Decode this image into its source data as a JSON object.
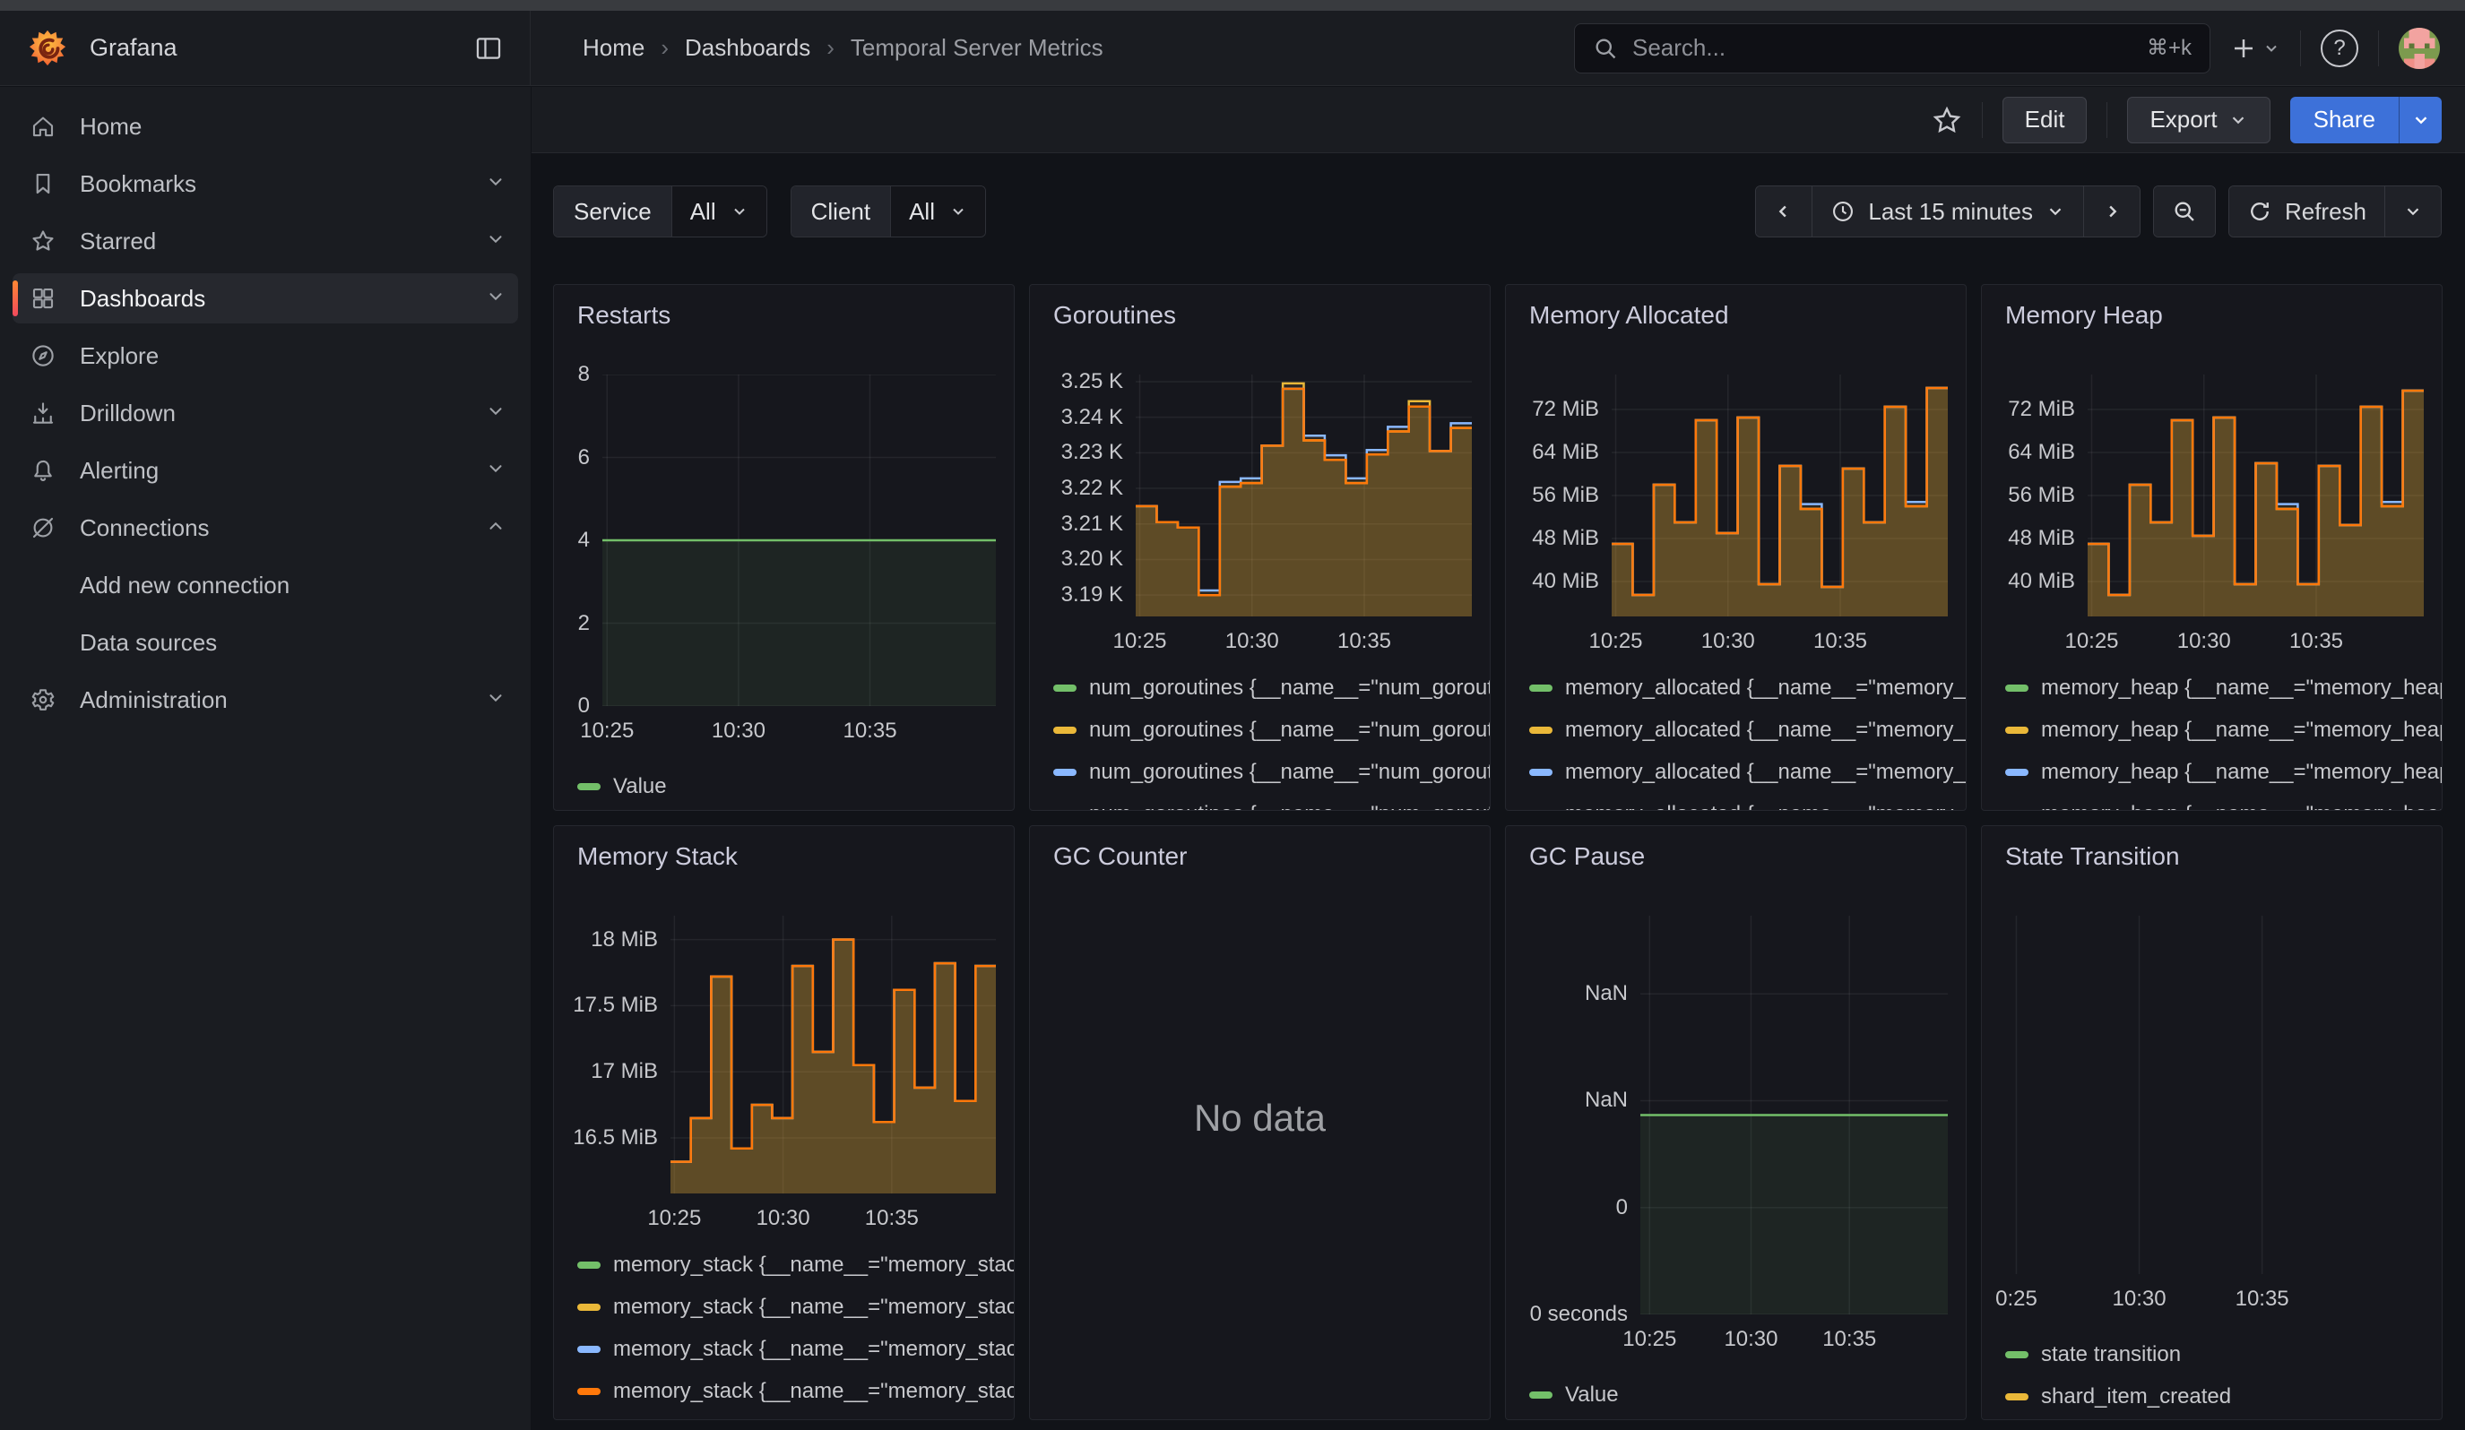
{
  "chrome": {
    "product": "Grafana",
    "breadcrumb": {
      "items": [
        "Home",
        "Dashboards",
        "Temporal Server Metrics"
      ]
    },
    "search": {
      "placeholder": "Search...",
      "shortcut": "⌘+k"
    },
    "actions": {
      "edit": "Edit",
      "export": "Export",
      "share": "Share"
    }
  },
  "sidebar": {
    "items": [
      {
        "id": "home",
        "label": "Home",
        "icon": "home",
        "chevron": null,
        "active": false
      },
      {
        "id": "bookmarks",
        "label": "Bookmarks",
        "icon": "bookmark",
        "chevron": "down",
        "active": false
      },
      {
        "id": "starred",
        "label": "Starred",
        "icon": "star",
        "chevron": "down",
        "active": false
      },
      {
        "id": "dashboards",
        "label": "Dashboards",
        "icon": "grid",
        "chevron": "down",
        "active": true
      },
      {
        "id": "explore",
        "label": "Explore",
        "icon": "compass",
        "chevron": null,
        "active": false
      },
      {
        "id": "drilldown",
        "label": "Drilldown",
        "icon": "drilldown",
        "chevron": "down",
        "active": false
      },
      {
        "id": "alerting",
        "label": "Alerting",
        "icon": "bell",
        "chevron": "down",
        "active": false
      },
      {
        "id": "connections",
        "label": "Connections",
        "icon": "plug",
        "chevron": "up",
        "active": false,
        "children": [
          "Add new connection",
          "Data sources"
        ]
      },
      {
        "id": "administration",
        "label": "Administration",
        "icon": "gear",
        "chevron": "down",
        "active": false
      }
    ]
  },
  "toolbar": {
    "filters": [
      {
        "label": "Service",
        "value": "All"
      },
      {
        "label": "Client",
        "value": "All"
      }
    ],
    "time": {
      "range_label": "Last 15 minutes",
      "refresh_label": "Refresh"
    }
  },
  "colors": {
    "green": "#73BF69",
    "yellow": "#EAB839",
    "blue": "#8AB8FF",
    "orange": "#FF780A",
    "accent_blue": "#3D71D9",
    "panel_bg": "#16171d",
    "page_bg": "#111318"
  },
  "panels": [
    {
      "id": "restarts",
      "title": "Restarts",
      "chart_data": {
        "type": "area",
        "subtype": "flat-line",
        "line_value": 4,
        "ylim": [
          0,
          8
        ],
        "y_ticks": [
          {
            "v": 0,
            "label": "0"
          },
          {
            "v": 2,
            "label": "2"
          },
          {
            "v": 4,
            "label": "4"
          },
          {
            "v": 6,
            "label": "6"
          },
          {
            "v": 8,
            "label": "8"
          }
        ],
        "x_ticks": [
          {
            "f": 0.012,
            "label": "10:25"
          },
          {
            "f": 0.346,
            "label": "10:30"
          },
          {
            "f": 0.68,
            "label": "10:35"
          }
        ],
        "series_color": "#73BF69"
      },
      "legend": [
        {
          "label": "Value",
          "color": "#73BF69"
        }
      ]
    },
    {
      "id": "goroutines",
      "title": "Goroutines",
      "chart_data": {
        "type": "area",
        "subtype": "steps",
        "ylim": [
          3.184,
          3.252
        ],
        "unit": "K",
        "y_ticks": [
          {
            "v": 3.19,
            "label": "3.19 K"
          },
          {
            "v": 3.2,
            "label": "3.20 K"
          },
          {
            "v": 3.21,
            "label": "3.21 K"
          },
          {
            "v": 3.22,
            "label": "3.22 K"
          },
          {
            "v": 3.23,
            "label": "3.23 K"
          },
          {
            "v": 3.24,
            "label": "3.24 K"
          },
          {
            "v": 3.25,
            "label": "3.25 K"
          }
        ],
        "x_ticks": [
          {
            "f": 0.012,
            "label": "10:25"
          },
          {
            "f": 0.346,
            "label": "10:30"
          },
          {
            "f": 0.68,
            "label": "10:35"
          }
        ],
        "series": [
          {
            "name": "num_goroutines green",
            "color": "#73BF69",
            "values": [
              3.215,
              3.2105,
              3.209,
              3.19,
              3.2205,
              3.2215,
              3.232,
              3.248,
              3.2335,
              3.228,
              3.2215,
              3.2295,
              3.236,
              3.243,
              3.2305,
              3.237
            ]
          },
          {
            "name": "num_goroutines yellow",
            "color": "#EAB839",
            "values": [
              3.215,
              3.2105,
              3.209,
              3.19,
              3.2205,
              3.2215,
              3.232,
              3.2495,
              3.2335,
              3.228,
              3.2215,
              3.2295,
              3.236,
              3.2445,
              3.2305,
              3.237
            ]
          },
          {
            "name": "num_goroutines blue",
            "color": "#8AB8FF",
            "values": [
              3.215,
              3.2105,
              3.209,
              3.1913,
              3.2218,
              3.2228,
              3.232,
              3.248,
              3.2348,
              3.2293,
              3.2228,
              3.2308,
              3.2373,
              3.243,
              3.2305,
              3.2383
            ]
          },
          {
            "name": "num_goroutines orange",
            "color": "#FF780A",
            "values": [
              3.215,
              3.2105,
              3.209,
              3.19,
              3.2205,
              3.2215,
              3.232,
              3.248,
              3.2335,
              3.228,
              3.2215,
              3.2295,
              3.236,
              3.243,
              3.2305,
              3.237
            ]
          }
        ]
      },
      "legend": [
        {
          "label": "num_goroutines {__name__=\"num_goroutines\"",
          "color": "#73BF69"
        },
        {
          "label": "num_goroutines {__name__=\"num_goroutines\"",
          "color": "#EAB839"
        },
        {
          "label": "num_goroutines {__name__=\"num_goroutines\"",
          "color": "#8AB8FF"
        },
        {
          "label": "num_goroutines {__name__=\"num_goroutines\"",
          "color": "#FF780A",
          "clipped": true
        }
      ]
    },
    {
      "id": "memory_allocated",
      "title": "Memory Allocated",
      "chart_data": {
        "type": "area",
        "subtype": "steps",
        "ylim": [
          33.5,
          78.5
        ],
        "unit": "MiB",
        "y_ticks": [
          {
            "v": 40,
            "label": "40 MiB"
          },
          {
            "v": 48,
            "label": "48 MiB"
          },
          {
            "v": 56,
            "label": "56 MiB"
          },
          {
            "v": 64,
            "label": "64 MiB"
          },
          {
            "v": 72,
            "label": "72 MiB"
          }
        ],
        "x_ticks": [
          {
            "f": 0.012,
            "label": "10:25"
          },
          {
            "f": 0.346,
            "label": "10:30"
          },
          {
            "f": 0.68,
            "label": "10:35"
          }
        ],
        "series": [
          {
            "name": "memory_allocated green",
            "color": "#73BF69",
            "values": [
              47,
              37.5,
              58,
              51,
              70,
              49,
              70.5,
              39.5,
              61.5,
              53.5,
              39,
              61,
              51,
              72.5,
              54,
              76
            ]
          },
          {
            "name": "memory_allocated yellow",
            "color": "#EAB839",
            "values": [
              47,
              37.5,
              58,
              51,
              70,
              49,
              70.5,
              39.5,
              61.5,
              53.5,
              39,
              61,
              51,
              72.5,
              54,
              76
            ]
          },
          {
            "name": "memory_allocated blue",
            "color": "#8AB8FF",
            "values": [
              47,
              37.5,
              58,
              51,
              70,
              49,
              70.5,
              39.5,
              61.5,
              54.4,
              39,
              61,
              51,
              72.5,
              54.8,
              76
            ]
          },
          {
            "name": "memory_allocated orange",
            "color": "#FF780A",
            "values": [
              47,
              37.5,
              58,
              51,
              70,
              49,
              70.5,
              39.5,
              61.5,
              53.5,
              39,
              61,
              51,
              72.5,
              54,
              76
            ]
          }
        ]
      },
      "legend": [
        {
          "label": "memory_allocated {__name__=\"memory_allocated\"",
          "color": "#73BF69"
        },
        {
          "label": "memory_allocated {__name__=\"memory_allocated\"",
          "color": "#EAB839"
        },
        {
          "label": "memory_allocated {__name__=\"memory_allocated\"",
          "color": "#8AB8FF"
        },
        {
          "label": "memory_allocated {__name__=\"memory_allocated\"",
          "color": "#FF780A",
          "clipped": true
        }
      ]
    },
    {
      "id": "memory_heap",
      "title": "Memory Heap",
      "chart_data": {
        "type": "area",
        "subtype": "steps",
        "ylim": [
          33.5,
          78.5
        ],
        "unit": "MiB",
        "y_ticks": [
          {
            "v": 40,
            "label": "40 MiB"
          },
          {
            "v": 48,
            "label": "48 MiB"
          },
          {
            "v": 56,
            "label": "56 MiB"
          },
          {
            "v": 64,
            "label": "64 MiB"
          },
          {
            "v": 72,
            "label": "72 MiB"
          }
        ],
        "x_ticks": [
          {
            "f": 0.012,
            "label": "10:25"
          },
          {
            "f": 0.346,
            "label": "10:30"
          },
          {
            "f": 0.68,
            "label": "10:35"
          }
        ],
        "series": [
          {
            "name": "memory_heap green",
            "color": "#73BF69",
            "values": [
              47,
              37.5,
              58,
              51,
              70,
              48.5,
              70.5,
              39.5,
              62,
              53.5,
              39.5,
              61.5,
              50.5,
              72.5,
              54,
              75.5
            ]
          },
          {
            "name": "memory_heap yellow",
            "color": "#EAB839",
            "values": [
              47,
              37.5,
              58,
              51,
              70,
              48.5,
              70.5,
              39.5,
              62,
              53.5,
              39.5,
              61.5,
              50.5,
              72.5,
              54,
              75.5
            ]
          },
          {
            "name": "memory_heap blue",
            "color": "#8AB8FF",
            "values": [
              47,
              37.5,
              58,
              51,
              70,
              48.5,
              70.5,
              39.5,
              62,
              54.4,
              39.5,
              61.5,
              50.5,
              72.5,
              54.8,
              75.5
            ]
          },
          {
            "name": "memory_heap orange",
            "color": "#FF780A",
            "values": [
              47,
              37.5,
              58,
              51,
              70,
              48.5,
              70.5,
              39.5,
              62,
              53.5,
              39.5,
              61.5,
              50.5,
              72.5,
              54,
              75.5
            ]
          }
        ]
      },
      "legend": [
        {
          "label": "memory_heap {__name__=\"memory_heap\"",
          "color": "#73BF69"
        },
        {
          "label": "memory_heap {__name__=\"memory_heap\"",
          "color": "#EAB839"
        },
        {
          "label": "memory_heap {__name__=\"memory_heap\"",
          "color": "#8AB8FF"
        },
        {
          "label": "memory_heap {__name__=\"memory_heap\"",
          "color": "#FF780A",
          "clipped": true
        }
      ]
    },
    {
      "id": "memory_stack",
      "title": "Memory Stack",
      "chart_data": {
        "type": "area",
        "subtype": "steps",
        "ylim": [
          16.08,
          18.18
        ],
        "unit": "MiB",
        "y_ticks": [
          {
            "v": 16.5,
            "label": "16.5 MiB"
          },
          {
            "v": 17,
            "label": "17 MiB"
          },
          {
            "v": 17.5,
            "label": "17.5 MiB"
          },
          {
            "v": 18,
            "label": "18 MiB"
          }
        ],
        "x_ticks": [
          {
            "f": 0.012,
            "label": "10:25"
          },
          {
            "f": 0.346,
            "label": "10:30"
          },
          {
            "f": 0.68,
            "label": "10:35"
          }
        ],
        "series": [
          {
            "name": "memory_stack green",
            "color": "#73BF69",
            "values": [
              16.32,
              16.65,
              17.72,
              16.42,
              16.75,
              16.65,
              17.8,
              17.15,
              18.0,
              17.05,
              16.62,
              17.62,
              16.88,
              17.82,
              16.78,
              17.8
            ]
          },
          {
            "name": "memory_stack yellow",
            "color": "#EAB839",
            "values": [
              16.32,
              16.65,
              17.72,
              16.42,
              16.75,
              16.65,
              17.8,
              17.15,
              18.0,
              17.05,
              16.62,
              17.62,
              16.88,
              17.82,
              16.78,
              17.8
            ]
          },
          {
            "name": "memory_stack blue",
            "color": "#8AB8FF",
            "values": [
              16.32,
              16.65,
              17.72,
              16.42,
              16.75,
              16.65,
              17.8,
              17.15,
              18.0,
              17.05,
              16.62,
              17.62,
              16.88,
              17.82,
              16.78,
              17.8
            ]
          },
          {
            "name": "memory_stack orange",
            "color": "#FF780A",
            "values": [
              16.32,
              16.65,
              17.72,
              16.42,
              16.75,
              16.65,
              17.8,
              17.15,
              18.0,
              17.05,
              16.62,
              17.62,
              16.88,
              17.82,
              16.78,
              17.8
            ]
          }
        ]
      },
      "legend": [
        {
          "label": "memory_stack {__name__=\"memory_stack\"",
          "color": "#73BF69"
        },
        {
          "label": "memory_stack {__name__=\"memory_stack\"",
          "color": "#EAB839"
        },
        {
          "label": "memory_stack {__name__=\"memory_stack\"",
          "color": "#8AB8FF"
        },
        {
          "label": "memory_stack {__name__=\"memory_stack\"",
          "color": "#FF780A"
        }
      ]
    },
    {
      "id": "gc_counter",
      "title": "GC Counter",
      "nodata_text": "No data",
      "chart_data": {
        "type": "area",
        "subtype": "nodata"
      },
      "legend": []
    },
    {
      "id": "gc_pause",
      "title": "GC Pause",
      "chart_data": {
        "type": "area",
        "subtype": "flat-line",
        "line_frac": 0.5,
        "unit": "seconds",
        "y_ticks_frac": [
          {
            "f": 0,
            "label": "0 seconds"
          },
          {
            "f": 0.268,
            "label": "0"
          },
          {
            "f": 0.536,
            "label": "NaN"
          },
          {
            "f": 0.804,
            "label": "NaN"
          }
        ],
        "x_ticks": [
          {
            "f": 0.03,
            "label": "10:25"
          },
          {
            "f": 0.36,
            "label": "10:30"
          },
          {
            "f": 0.68,
            "label": "10:35"
          }
        ],
        "series_color": "#73BF69"
      },
      "legend": [
        {
          "label": "Value",
          "color": "#73BF69"
        }
      ]
    },
    {
      "id": "state_transition",
      "title": "State Transition",
      "chart_data": {
        "type": "area",
        "subtype": "empty",
        "x_ticks": [
          {
            "f": 0.055,
            "label": "0:25"
          },
          {
            "f": 0.34,
            "label": "10:30"
          },
          {
            "f": 0.625,
            "label": "10:35"
          }
        ]
      },
      "legend": [
        {
          "label": "state transition",
          "color": "#73BF69"
        },
        {
          "label": "shard_item_created",
          "color": "#EAB839"
        }
      ]
    }
  ]
}
